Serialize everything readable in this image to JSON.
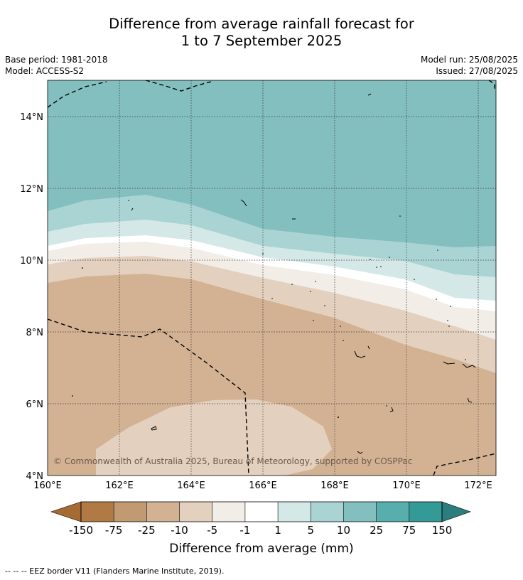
{
  "title_line1": "Difference from average rainfall forecast for",
  "title_line2": "1 to 7 September 2025",
  "base_period": "Base period: 1981-2018",
  "model": "Model: ACCESS-S2",
  "model_run": "Model run: 25/08/2025",
  "issued": "Issued: 27/08/2025",
  "lat_labels": [
    "14°N",
    "12°N",
    "10°N",
    "8°N",
    "6°N",
    "4°N"
  ],
  "lon_labels": [
    "160°E",
    "162°E",
    "164°E",
    "166°E",
    "168°E",
    "170°E",
    "172°E"
  ],
  "copyright": "© Commonwealth of Australia 2025, Bureau of Meteorology, supported by COSPPac",
  "colorbar": {
    "ticks": [
      "-150",
      "-75",
      "-25",
      "-10",
      "-5",
      "-1",
      "1",
      "5",
      "10",
      "25",
      "75",
      "150"
    ],
    "colors": [
      "#a66a33",
      "#b17a44",
      "#c29a72",
      "#d3b294",
      "#e4d0be",
      "#f2ede7",
      "#ffffff",
      "#d4e8e7",
      "#aad4d4",
      "#84bfbf",
      "#58adad",
      "#349a98",
      "#2a7e7d"
    ],
    "title": "Difference from average (mm)"
  },
  "legend_note": "--  --  -- EEZ border V11 (Flanders Marine Institute, 2019)."
}
